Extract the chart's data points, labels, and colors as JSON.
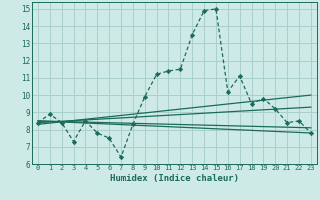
{
  "xlabel": "Humidex (Indice chaleur)",
  "ylabel": "",
  "bg_color": "#ceeae6",
  "grid_color": "#aacfcc",
  "line_color": "#1a6b5a",
  "xlim": [
    -0.5,
    23.5
  ],
  "ylim": [
    6,
    15.4
  ],
  "yticks": [
    6,
    7,
    8,
    9,
    10,
    11,
    12,
    13,
    14,
    15
  ],
  "xticks": [
    0,
    1,
    2,
    3,
    4,
    5,
    6,
    7,
    8,
    9,
    10,
    11,
    12,
    13,
    14,
    15,
    16,
    17,
    18,
    19,
    20,
    21,
    22,
    23
  ],
  "main_x": [
    0,
    1,
    2,
    3,
    4,
    5,
    6,
    7,
    8,
    9,
    10,
    11,
    12,
    13,
    14,
    15,
    16,
    17,
    18,
    19,
    20,
    21,
    22,
    23
  ],
  "main_y": [
    8.4,
    8.9,
    8.4,
    7.3,
    8.5,
    7.8,
    7.5,
    6.4,
    8.3,
    9.9,
    11.2,
    11.4,
    11.5,
    13.5,
    14.9,
    15.0,
    10.2,
    11.1,
    9.5,
    9.8,
    9.2,
    8.4,
    8.5,
    7.8
  ],
  "trend1_x": [
    0,
    23
  ],
  "trend1_y": [
    8.3,
    10.0
  ],
  "trend2_x": [
    0,
    23
  ],
  "trend2_y": [
    8.4,
    9.3
  ],
  "trend3_x": [
    0,
    23
  ],
  "trend3_y": [
    8.5,
    8.1
  ],
  "trend4_x": [
    0,
    23
  ],
  "trend4_y": [
    8.5,
    7.8
  ]
}
